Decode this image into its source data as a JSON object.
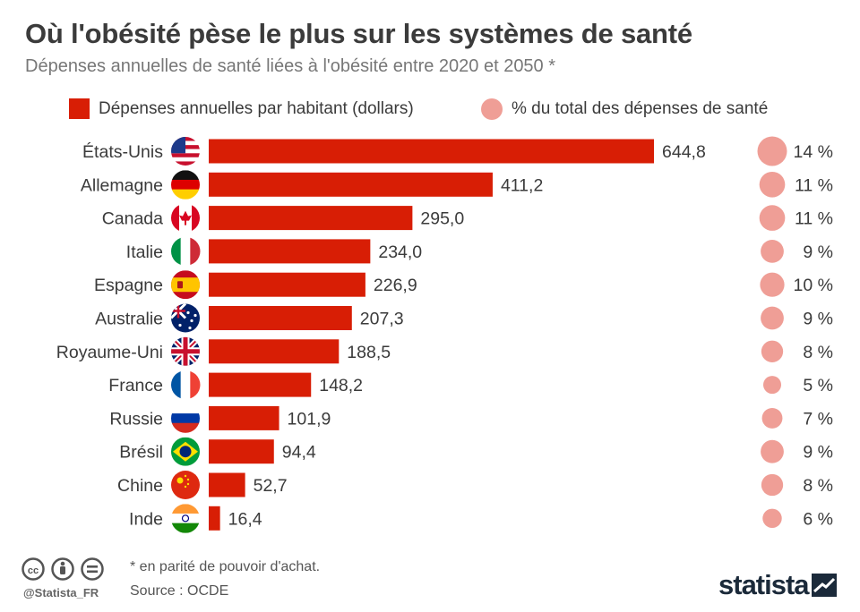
{
  "header": {
    "title": "Où l'obésité pèse le plus sur les systèmes de santé",
    "subtitle": "Dépenses annuelles de santé liées à l'obésité entre 2020 et 2050 *"
  },
  "legend": {
    "bars": "Dépenses annuelles par habitant (dollars)",
    "dots": "% du total des dépenses de santé"
  },
  "colors": {
    "bar": "#d81e05",
    "dot": "#ef9e96",
    "text": "#3b3b3b"
  },
  "chart_data": {
    "type": "bar",
    "orientation": "horizontal",
    "title": "Où l'obésité pèse le plus sur les systèmes de santé",
    "subtitle": "Dépenses annuelles de santé liées à l'obésité entre 2020 et 2050 *",
    "categories": [
      "États-Unis",
      "Allemagne",
      "Canada",
      "Italie",
      "Espagne",
      "Australie",
      "Royaume-Uni",
      "France",
      "Russie",
      "Brésil",
      "Chine",
      "Inde"
    ],
    "flags": [
      "us",
      "de",
      "ca",
      "it",
      "es",
      "au",
      "gb",
      "fr",
      "ru",
      "br",
      "cn",
      "in"
    ],
    "series": [
      {
        "name": "Dépenses annuelles par habitant (dollars)",
        "values": [
          644.8,
          411.2,
          295.0,
          234.0,
          226.9,
          207.3,
          188.5,
          148.2,
          101.9,
          94.4,
          52.7,
          16.4
        ],
        "labels": [
          "644,8",
          "411,2",
          "295,0",
          "234,0",
          "226,9",
          "207,3",
          "188,5",
          "148,2",
          "101,9",
          "94,4",
          "52,7",
          "16,4"
        ]
      },
      {
        "name": "% du total des dépenses de santé",
        "values": [
          14,
          11,
          11,
          9,
          10,
          9,
          8,
          5,
          7,
          9,
          8,
          6
        ],
        "labels": [
          "14 %",
          "11 %",
          "11 %",
          "9 %",
          "10 %",
          "9 %",
          "8 %",
          "5 %",
          "7 %",
          "9 %",
          "8 %",
          "6 %"
        ]
      }
    ],
    "xlim": [
      0,
      700
    ],
    "grid": false,
    "legend_position": "top"
  },
  "footer": {
    "note": "* en parité de pouvoir d'achat.",
    "source": "Source : OCDE",
    "handle": "@Statista_FR",
    "brand": "statista"
  }
}
